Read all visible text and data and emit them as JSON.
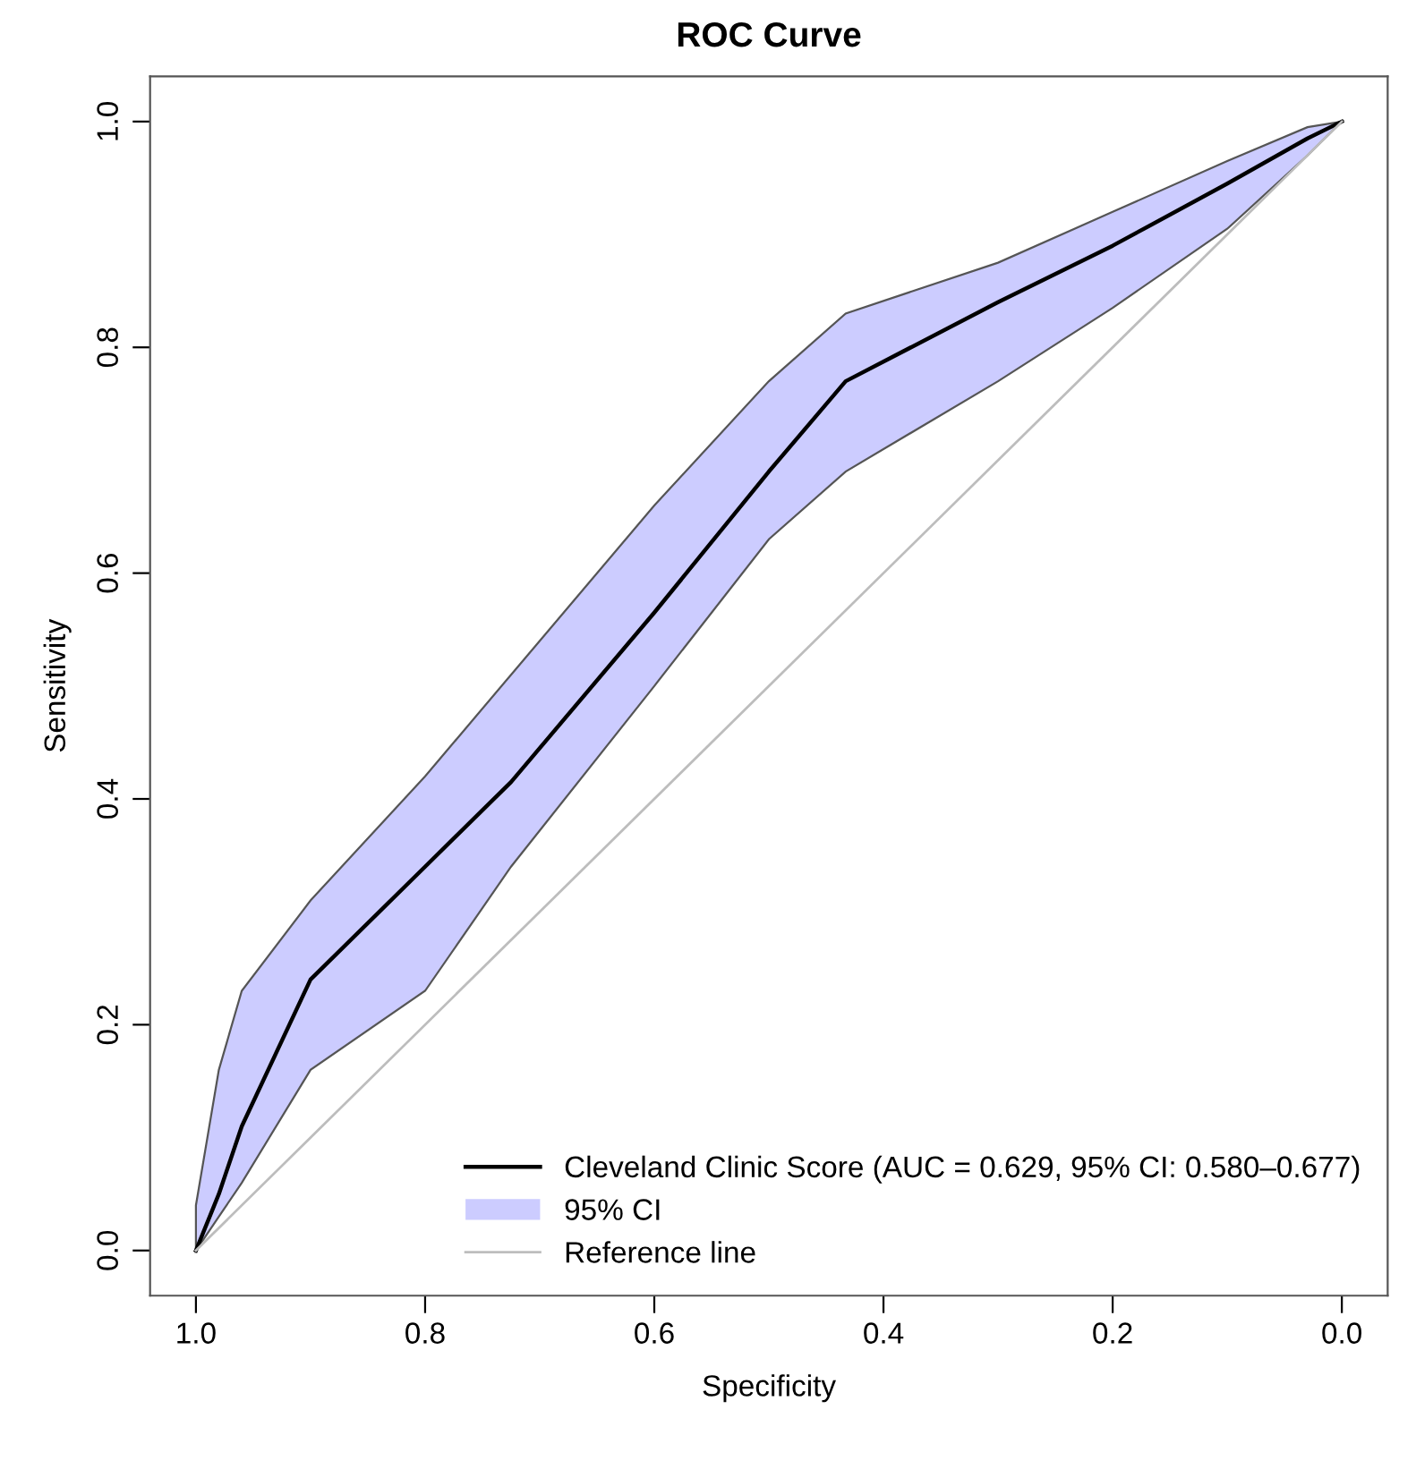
{
  "chart_data": {
    "type": "line",
    "title": "ROC Curve",
    "xlabel": "Specificity",
    "ylabel": "Sensitivity",
    "annotations": [
      "95% CI"
    ],
    "xlim": [
      1.04,
      -0.04
    ],
    "xticks": [
      {
        "value": 1.0,
        "label": "1.0"
      },
      0.8,
      0.6,
      0.4,
      0.2,
      {
        "value": 0.0,
        "label": "0.0"
      }
    ],
    "ylim": [
      -0.04,
      1.04
    ],
    "yticks": [
      {
        "value": 0.0,
        "label": "0.0"
      },
      0.2,
      0.4,
      0.6,
      0.8,
      {
        "value": 1.0,
        "label": "1.0"
      }
    ],
    "grid": false,
    "legend": "bottom right",
    "marker": "none",
    "line_style": "solid",
    "series": [
      {
        "name": "Cleveland Clinic Score (AUC = 0.629, 95% CI: 0.580–0.677)",
        "color": "#000000",
        "x": [
          1.0,
          0.98,
          0.96,
          0.9,
          0.8,
          0.725,
          0.6,
          0.5,
          0.433,
          0.3,
          0.2,
          0.1,
          0.03,
          0.0
        ],
        "values": [
          0,
          0.05,
          0.11,
          0.24,
          0.34,
          0.415,
          0.565,
          0.69,
          0.77,
          0.84,
          0.89,
          0.945,
          0.985,
          1.0
        ],
        "lower": [
          0,
          0.03,
          0.06,
          0.16,
          0.23,
          0.34,
          0.5,
          0.63,
          0.69,
          0.77,
          0.835,
          0.905,
          0.97,
          1.0
        ],
        "upper": [
          0.04,
          0.16,
          0.23,
          0.31,
          0.42,
          0.51,
          0.66,
          0.77,
          0.83,
          0.875,
          0.92,
          0.965,
          0.995,
          1.0
        ]
      },
      {
        "name": "Reference line",
        "color": "#bdbdbd",
        "x": [
          1.0,
          0.0
        ],
        "values": [
          0,
          1
        ]
      }
    ]
  }
}
